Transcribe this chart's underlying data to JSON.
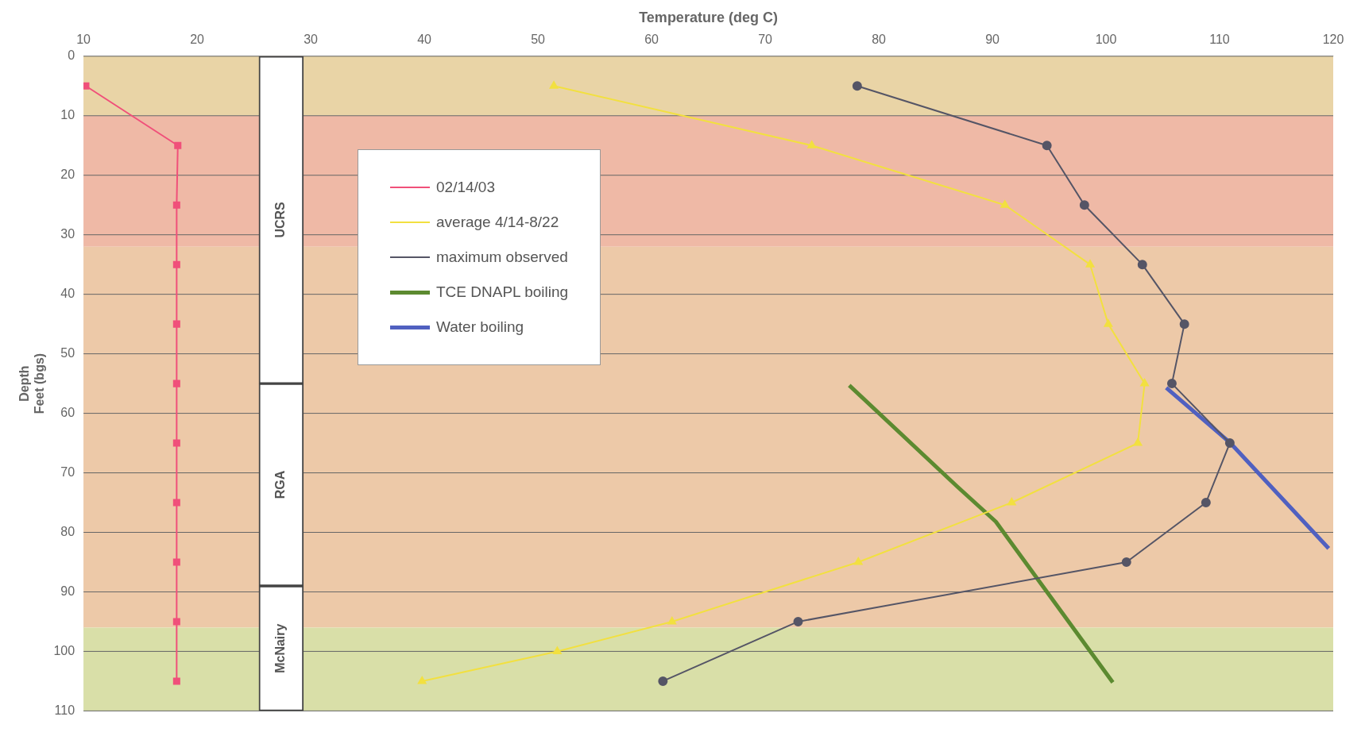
{
  "chart_data": {
    "type": "line",
    "xlabel": "Temperature (deg C)",
    "ylabel": "Depth\nFeet (bgs)",
    "xlim": [
      10,
      120
    ],
    "xticks": [
      10,
      20,
      30,
      40,
      50,
      60,
      70,
      80,
      90,
      100,
      110,
      120
    ],
    "ylim": [
      110,
      0
    ],
    "yticks": [
      0,
      10,
      20,
      30,
      40,
      50,
      60,
      70,
      80,
      90,
      100,
      110
    ],
    "grid": "y",
    "legend": "top left",
    "series": [
      {
        "name": "02/14/03",
        "color": "#f0507a",
        "marker": "square",
        "x": [
          10.2,
          18.3,
          18.2,
          18.2,
          18.2,
          18.2,
          18.2,
          18.2,
          18.2,
          18.2,
          18.2
        ],
        "values": [
          5,
          15,
          25,
          35,
          45,
          55,
          65,
          75,
          85,
          95,
          105
        ]
      },
      {
        "name": "average 4/14-8/22",
        "color": "#f2e040",
        "marker": "triangle",
        "x": [
          51.4,
          74.1,
          91.1,
          98.6,
          100.2,
          103.4,
          102.8,
          91.7,
          78.2,
          61.8,
          51.7,
          39.8
        ],
        "values": [
          5,
          15,
          25,
          35,
          45,
          55,
          65,
          75,
          85,
          95,
          100,
          105
        ]
      },
      {
        "name": "maximum observed",
        "color": "#555566",
        "marker": "circle",
        "x": [
          78.1,
          94.8,
          98.1,
          103.2,
          106.9,
          105.8,
          110.9,
          108.8,
          101.8,
          72.9,
          61.0
        ],
        "values": [
          5,
          15,
          25,
          35,
          45,
          55,
          65,
          75,
          85,
          95,
          105
        ]
      },
      {
        "name": "TCE DNAPL boiling",
        "color": "#5c8a30",
        "marker": "none",
        "x": [
          77.4,
          86.9,
          90.3,
          100.6
        ],
        "values": [
          55.3,
          72.3,
          78.2,
          105.2
        ]
      },
      {
        "name": "Water boiling",
        "color": "#5060c0",
        "marker": "none",
        "x": [
          105.3,
          110.9,
          119.6
        ],
        "values": [
          55.7,
          64.9,
          82.7
        ]
      },
      {
        "type": "bar",
        "color": "#ffffff",
        "x": [
          27.4
        ],
        "base": [
          0
        ],
        "values": [
          55
        ],
        "value_labels": [
          "UCRS"
        ]
      },
      {
        "type": "bar",
        "color": "#ffffff",
        "x": [
          27.4
        ],
        "base": [
          55
        ],
        "values": [
          34
        ],
        "value_labels": [
          "RGA"
        ]
      },
      {
        "type": "bar",
        "color": "#ffffff",
        "x": [
          27.4
        ],
        "base": [
          89
        ],
        "values": [
          21
        ],
        "value_labels": [
          "McNairy"
        ]
      }
    ],
    "bands": [
      {
        "axis": "y",
        "from": 0,
        "to": 10,
        "color": "#e9d4a6"
      },
      {
        "axis": "y",
        "from": 10,
        "to": 32,
        "color": "#efb9a6"
      },
      {
        "axis": "y",
        "from": 32,
        "to": 96,
        "color": "#edc9a8"
      },
      {
        "axis": "y",
        "from": 96,
        "to": 110,
        "color": "#d9dfa8"
      }
    ]
  }
}
